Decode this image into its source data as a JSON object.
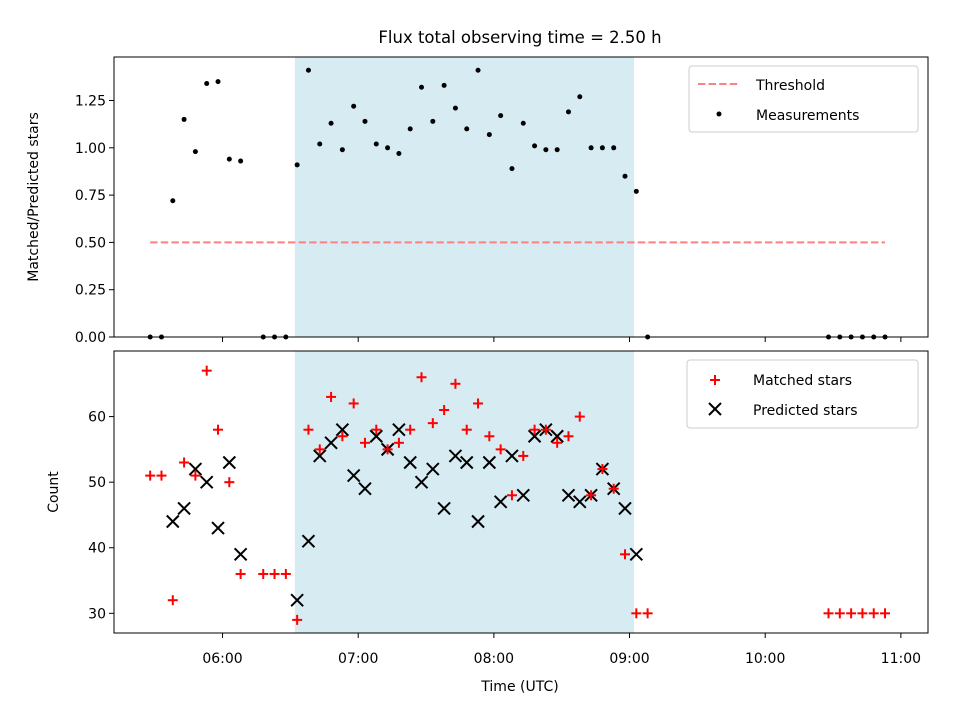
{
  "title": "Flux total observing time = 2.50 h",
  "shade_span": [
    "06:32",
    "09:02"
  ],
  "colors": {
    "threshold": "#ff8080",
    "shade": "#add8e6",
    "matched": "#ff0000",
    "predicted": "#000000"
  },
  "xaxis": {
    "label": "Time (UTC)",
    "range": [
      "05:12",
      "11:12"
    ],
    "ticks": [
      "06:00",
      "07:00",
      "08:00",
      "09:00",
      "10:00",
      "11:00"
    ]
  },
  "chart_data": [
    {
      "type": "scatter",
      "ylabel": "Matched/Predicted stars",
      "ylim": [
        0,
        1.48
      ],
      "yticks": [
        "0.00",
        "0.25",
        "0.50",
        "0.75",
        "1.00",
        "1.25"
      ],
      "legend_position": "top-right",
      "threshold": {
        "name": "Threshold",
        "y": 0.5,
        "x_range": [
          "05:28",
          "10:53"
        ]
      },
      "series": [
        {
          "name": "Measurements",
          "x": [
            "05:28",
            "05:33",
            "05:38",
            "05:43",
            "05:48",
            "05:53",
            "05:58",
            "06:03",
            "06:08",
            "06:18",
            "06:23",
            "06:28",
            "06:33",
            "06:38",
            "06:43",
            "06:48",
            "06:53",
            "06:58",
            "07:03",
            "07:08",
            "07:13",
            "07:18",
            "07:23",
            "07:28",
            "07:33",
            "07:38",
            "07:43",
            "07:48",
            "07:53",
            "07:58",
            "08:03",
            "08:08",
            "08:13",
            "08:18",
            "08:23",
            "08:28",
            "08:33",
            "08:38",
            "08:43",
            "08:48",
            "08:53",
            "08:58",
            "09:03",
            "09:08",
            "10:28",
            "10:33",
            "10:38",
            "10:43",
            "10:48",
            "10:53"
          ],
          "y": [
            0,
            0,
            0.72,
            1.15,
            0.98,
            1.34,
            1.35,
            0.94,
            0.93,
            0,
            0,
            0,
            0.91,
            1.41,
            1.02,
            1.13,
            0.99,
            1.22,
            1.14,
            1.02,
            1.0,
            0.97,
            1.1,
            1.32,
            1.14,
            1.33,
            1.21,
            1.1,
            1.41,
            1.07,
            1.17,
            0.89,
            1.13,
            1.01,
            0.99,
            0.99,
            1.19,
            1.27,
            1.0,
            1.0,
            1.0,
            0.85,
            0.77,
            0,
            0,
            0,
            0,
            0,
            0,
            0
          ]
        }
      ]
    },
    {
      "type": "scatter",
      "ylabel": "Count",
      "ylim": [
        27,
        70
      ],
      "yticks": [
        "30",
        "40",
        "50",
        "60"
      ],
      "legend_position": "top-right",
      "series": [
        {
          "name": "Matched stars",
          "marker": "+",
          "x": [
            "05:28",
            "05:33",
            "05:38",
            "05:43",
            "05:48",
            "05:53",
            "05:58",
            "06:03",
            "06:08",
            "06:18",
            "06:23",
            "06:28",
            "06:33",
            "06:38",
            "06:43",
            "06:48",
            "06:53",
            "06:58",
            "07:03",
            "07:08",
            "07:13",
            "07:18",
            "07:23",
            "07:28",
            "07:33",
            "07:38",
            "07:43",
            "07:48",
            "07:53",
            "07:58",
            "08:03",
            "08:08",
            "08:13",
            "08:18",
            "08:23",
            "08:28",
            "08:33",
            "08:38",
            "08:43",
            "08:48",
            "08:53",
            "08:58",
            "09:03",
            "09:08",
            "10:28",
            "10:33",
            "10:38",
            "10:43",
            "10:48",
            "10:53"
          ],
          "y": [
            51,
            51,
            32,
            53,
            51,
            67,
            58,
            50,
            36,
            36,
            36,
            36,
            29,
            58,
            55,
            63,
            57,
            62,
            56,
            58,
            55,
            56,
            58,
            66,
            59,
            61,
            65,
            58,
            62,
            57,
            55,
            48,
            54,
            58,
            58,
            56,
            57,
            60,
            48,
            52,
            49,
            39,
            30,
            30,
            30,
            30,
            30,
            30,
            30,
            30
          ]
        },
        {
          "name": "Predicted stars",
          "marker": "x",
          "x": [
            "05:38",
            "05:43",
            "05:48",
            "05:53",
            "05:58",
            "06:03",
            "06:08",
            "06:33",
            "06:38",
            "06:43",
            "06:48",
            "06:53",
            "06:58",
            "07:03",
            "07:08",
            "07:13",
            "07:18",
            "07:23",
            "07:28",
            "07:33",
            "07:38",
            "07:43",
            "07:48",
            "07:53",
            "07:58",
            "08:03",
            "08:08",
            "08:13",
            "08:18",
            "08:23",
            "08:28",
            "08:33",
            "08:38",
            "08:43",
            "08:48",
            "08:53",
            "08:58",
            "09:03"
          ],
          "y": [
            44,
            46,
            52,
            50,
            43,
            53,
            39,
            32,
            41,
            54,
            56,
            58,
            51,
            49,
            57,
            55,
            58,
            53,
            50,
            52,
            46,
            54,
            53,
            44,
            53,
            47,
            54,
            48,
            57,
            58,
            57,
            48,
            47,
            48,
            52,
            49,
            46,
            39
          ]
        }
      ]
    }
  ]
}
